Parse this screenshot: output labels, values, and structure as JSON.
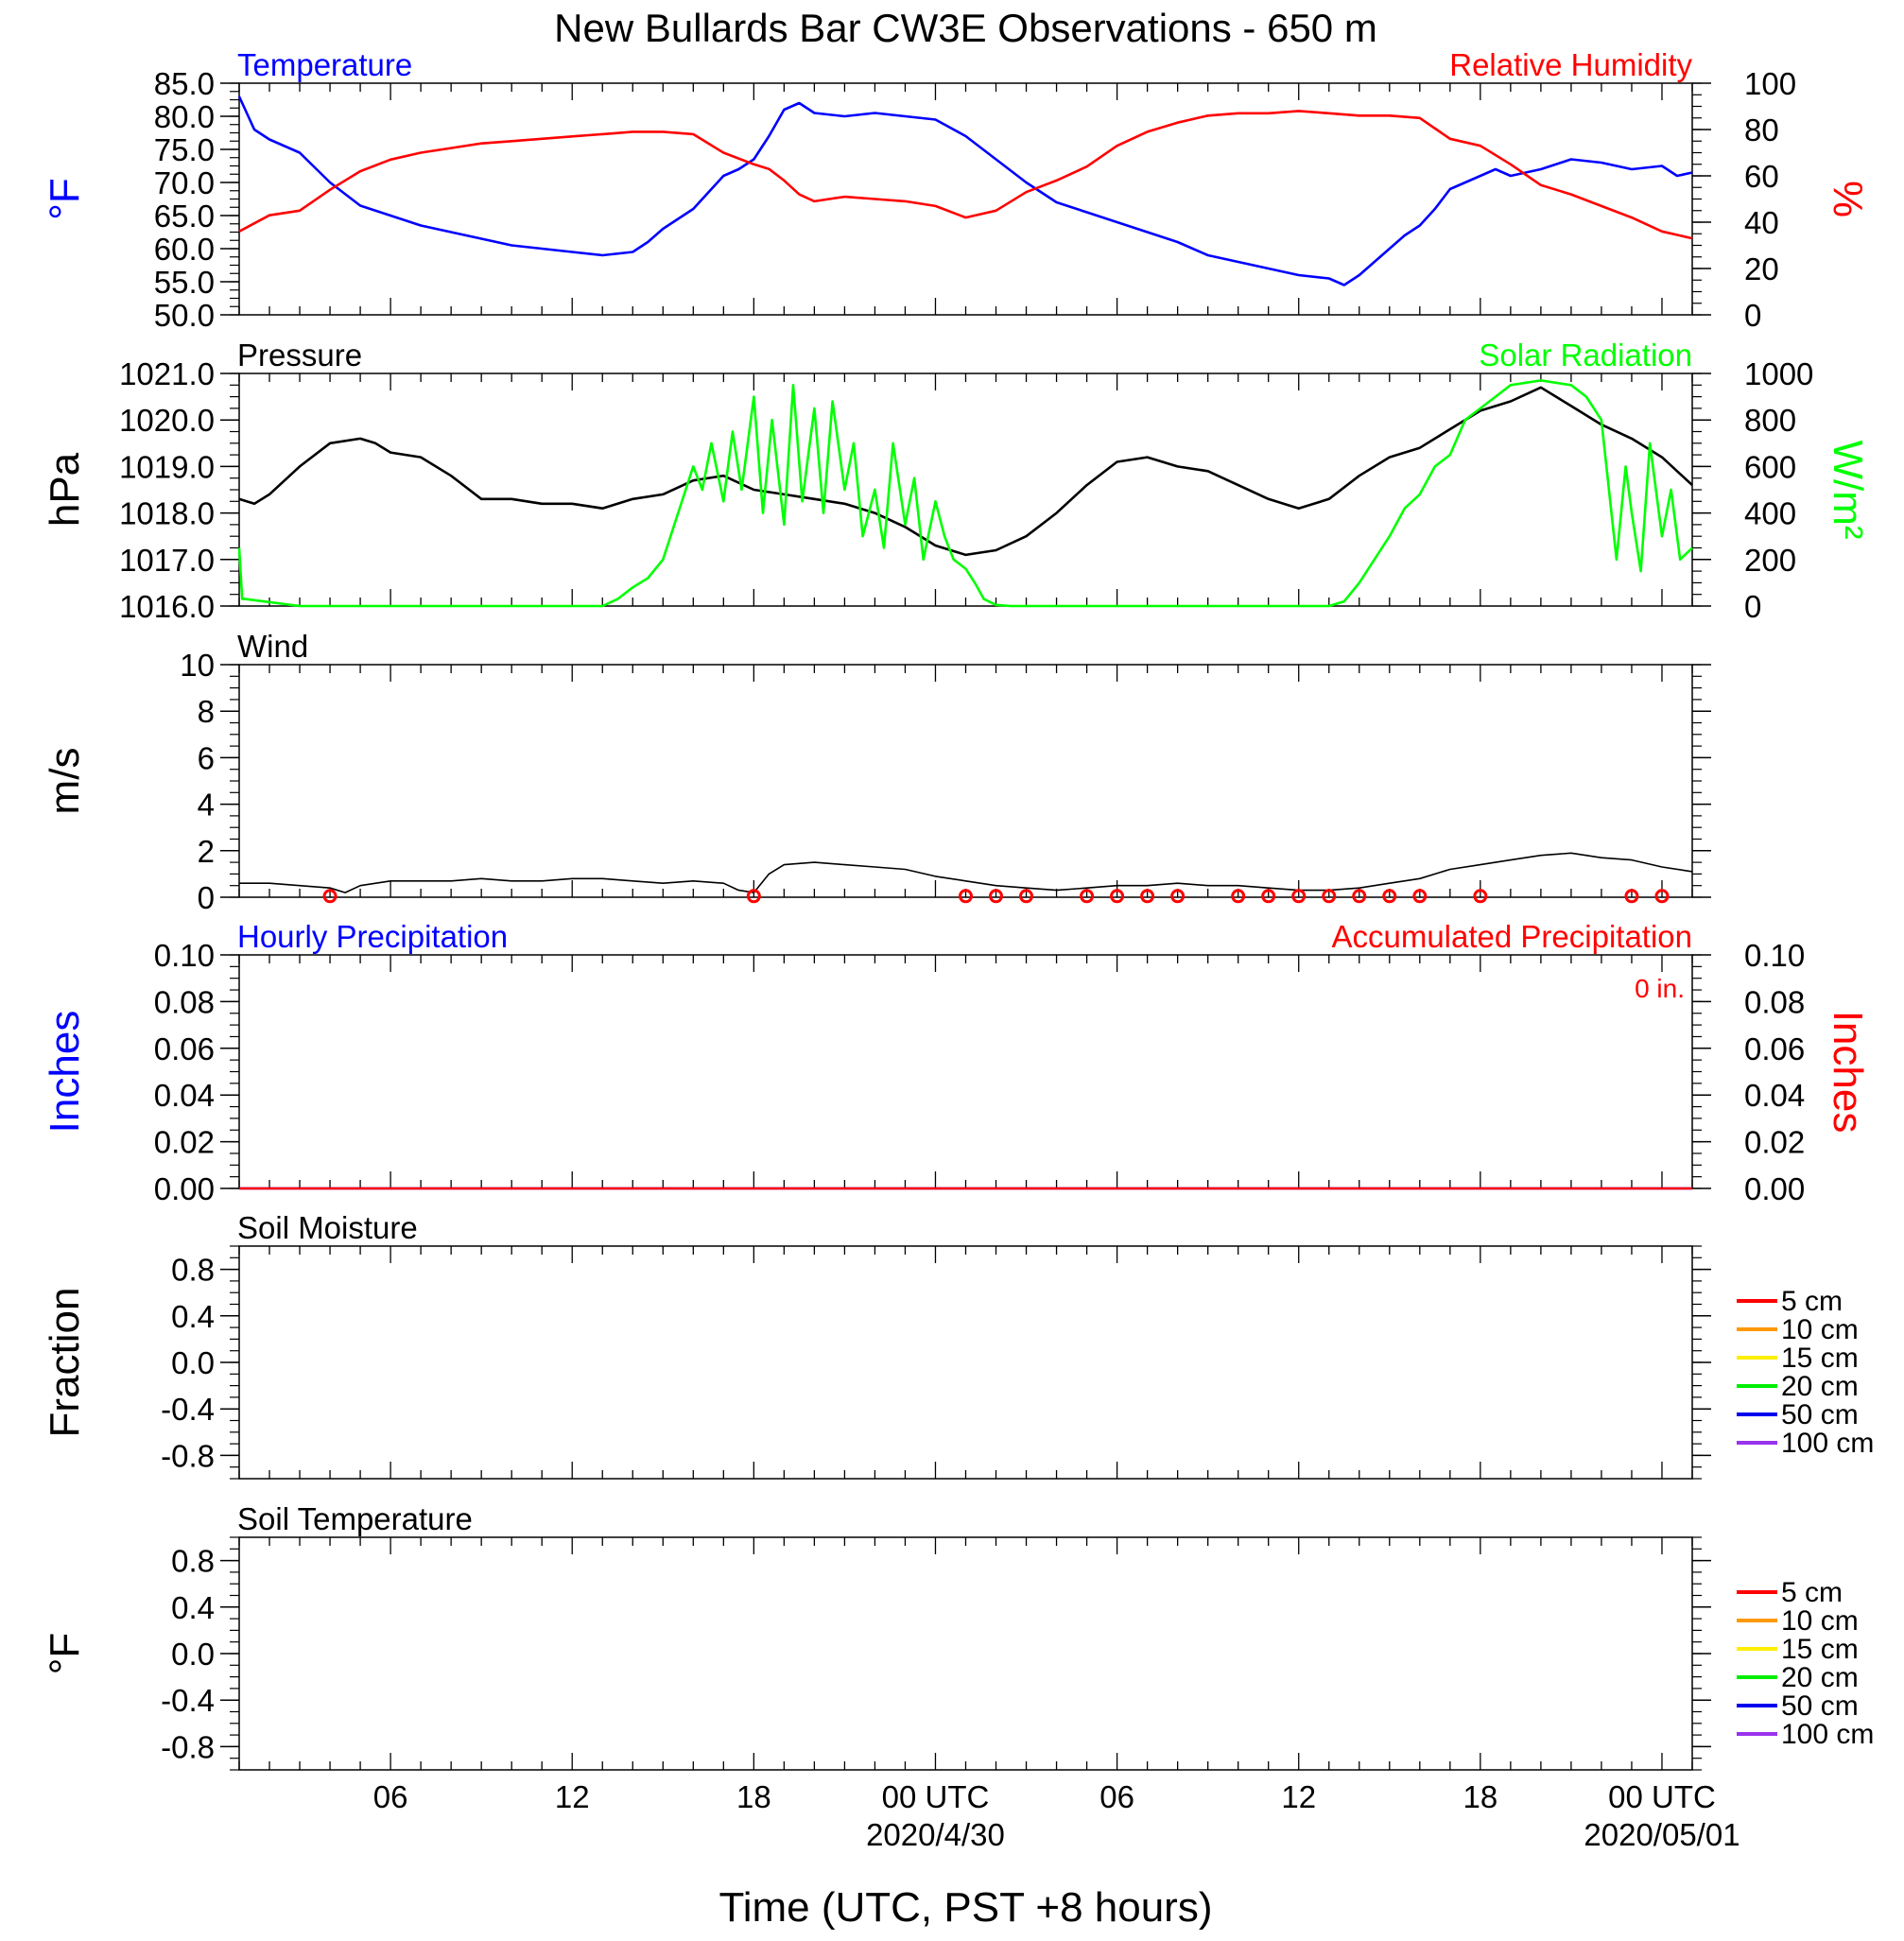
{
  "chart_data": [
    {
      "id": "temp_rh",
      "type": "line",
      "title": "New Bullards Bar CW3E Observations - 650 m",
      "panel_label_left": "Temperature",
      "panel_label_right": "Relative Humidity",
      "ylabel_left": "°F",
      "ylabel_right": "%",
      "xlim": [
        0,
        48
      ],
      "ylim_left": [
        50,
        85
      ],
      "ylim_right": [
        0,
        100
      ],
      "yticks_left": [
        "50.0",
        "55.0",
        "60.0",
        "65.0",
        "70.0",
        "75.0",
        "80.0",
        "85.0"
      ],
      "yticks_right": [
        "0",
        "20",
        "40",
        "60",
        "80",
        "100"
      ],
      "series": [
        {
          "name": "Temperature",
          "axis": "left",
          "color": "#0000ff",
          "x": [
            0,
            0.2,
            0.5,
            1,
            2,
            3,
            4,
            5,
            6,
            7,
            8,
            9,
            10,
            11,
            12,
            13,
            13.5,
            14,
            15,
            15.5,
            16,
            16.5,
            17,
            17.5,
            18,
            18.5,
            19,
            20,
            21,
            22,
            23,
            24,
            25,
            26,
            27,
            28,
            29,
            30,
            31,
            32,
            33,
            34,
            35,
            36,
            36.5,
            37,
            37.5,
            38,
            38.5,
            39,
            39.5,
            40,
            41,
            41.5,
            42,
            43,
            44,
            45,
            46,
            47,
            47.5,
            48
          ],
          "y": [
            83,
            81,
            78,
            76.5,
            74.5,
            70,
            66.5,
            65,
            63.5,
            62.5,
            61.5,
            60.5,
            60,
            59.5,
            59,
            59.5,
            61,
            63,
            66,
            68.5,
            71,
            72,
            73.5,
            77,
            81,
            82,
            80.5,
            80,
            80.5,
            80,
            79.5,
            77,
            73.5,
            70,
            67,
            65.5,
            64,
            62.5,
            61,
            59,
            58,
            57,
            56,
            55.5,
            54.5,
            56,
            58,
            60,
            62,
            63.5,
            66,
            69,
            71,
            72,
            71,
            72,
            73.5,
            73,
            72,
            72.5,
            71,
            71.5
          ]
        },
        {
          "name": "Relative Humidity",
          "axis": "right",
          "color": "#ff0000",
          "x": [
            0,
            1,
            2,
            3,
            4,
            5,
            6,
            7,
            8,
            9,
            10,
            11,
            12,
            13,
            14,
            15,
            16,
            17,
            17.5,
            18,
            18.5,
            19,
            20,
            21,
            22,
            23,
            24,
            25,
            26,
            27,
            28,
            29,
            30,
            31,
            32,
            33,
            34,
            35,
            36,
            37,
            38,
            39,
            40,
            41,
            42,
            43,
            44,
            45,
            46,
            47,
            48
          ],
          "y": [
            36,
            43,
            45,
            54,
            62,
            67,
            70,
            72,
            74,
            75,
            76,
            77,
            78,
            79,
            79,
            78,
            70,
            65,
            63,
            58,
            52,
            49,
            51,
            50,
            49,
            47,
            42,
            45,
            53,
            58,
            64,
            73,
            79,
            83,
            86,
            87,
            87,
            88,
            87,
            86,
            86,
            85,
            76,
            73,
            65,
            56,
            52,
            47,
            42,
            36,
            33
          ]
        }
      ]
    },
    {
      "id": "pressure_solar",
      "type": "line",
      "panel_label_left": "Pressure",
      "panel_label_right": "Solar Radiation",
      "ylabel_left": "hPa",
      "ylabel_right": "W/m²",
      "xlim": [
        0,
        48
      ],
      "ylim_left": [
        1016,
        1021
      ],
      "ylim_right": [
        0,
        1000
      ],
      "yticks_left": [
        "1016.0",
        "1017.0",
        "1018.0",
        "1019.0",
        "1020.0",
        "1021.0"
      ],
      "yticks_right": [
        "0",
        "200",
        "400",
        "600",
        "800",
        "1000"
      ],
      "series": [
        {
          "name": "Pressure",
          "axis": "left",
          "color": "#000000",
          "x": [
            0,
            0.5,
            1,
            2,
            3,
            4,
            4.5,
            5,
            6,
            7,
            8,
            9,
            10,
            11,
            12,
            13,
            14,
            15,
            16,
            17,
            18,
            19,
            20,
            21,
            22,
            23,
            24,
            25,
            26,
            27,
            28,
            29,
            30,
            31,
            32,
            33,
            34,
            35,
            36,
            37,
            38,
            39,
            40,
            41,
            42,
            43,
            44,
            45,
            46,
            47,
            48
          ],
          "y": [
            1018.3,
            1018.2,
            1018.4,
            1019.0,
            1019.5,
            1019.6,
            1019.5,
            1019.3,
            1019.2,
            1018.8,
            1018.3,
            1018.3,
            1018.2,
            1018.2,
            1018.1,
            1018.3,
            1018.4,
            1018.7,
            1018.8,
            1018.5,
            1018.4,
            1018.3,
            1018.2,
            1018.0,
            1017.7,
            1017.3,
            1017.1,
            1017.2,
            1017.5,
            1018.0,
            1018.6,
            1019.1,
            1019.2,
            1019.0,
            1018.9,
            1018.6,
            1018.3,
            1018.1,
            1018.3,
            1018.8,
            1019.2,
            1019.4,
            1019.8,
            1020.2,
            1020.4,
            1020.7,
            1020.3,
            1019.9,
            1019.6,
            1019.2,
            1018.6
          ]
        },
        {
          "name": "Solar Radiation",
          "axis": "right",
          "color": "#00ff00",
          "x": [
            0,
            0.1,
            0.2,
            2,
            4,
            6,
            8,
            10,
            12,
            12.5,
            13,
            13.5,
            14,
            14.5,
            15,
            15.3,
            15.6,
            16,
            16.3,
            16.6,
            17,
            17.3,
            17.6,
            18,
            18.3,
            18.6,
            19,
            19.3,
            19.6,
            20,
            20.3,
            20.6,
            21,
            21.3,
            21.6,
            22,
            22.3,
            22.6,
            23,
            23.3,
            23.6,
            24,
            24.3,
            24.6,
            25,
            25.5,
            26,
            27,
            28,
            30,
            32,
            34,
            36,
            36.5,
            37,
            37.5,
            38,
            38.5,
            39,
            39.5,
            40,
            40.5,
            41,
            41.5,
            42,
            43,
            44,
            44.5,
            45,
            45.5,
            45.8,
            46,
            46.3,
            46.6,
            47,
            47.3,
            47.6,
            48
          ],
          "y": [
            250,
            30,
            30,
            0,
            0,
            0,
            0,
            0,
            0,
            30,
            80,
            120,
            200,
            400,
            600,
            500,
            700,
            450,
            750,
            500,
            900,
            400,
            800,
            350,
            950,
            450,
            850,
            400,
            880,
            500,
            700,
            300,
            500,
            250,
            700,
            350,
            550,
            200,
            450,
            300,
            200,
            160,
            100,
            30,
            5,
            0,
            0,
            0,
            0,
            0,
            0,
            0,
            0,
            20,
            100,
            200,
            300,
            420,
            480,
            600,
            650,
            800,
            850,
            900,
            950,
            970,
            950,
            900,
            800,
            200,
            600,
            400,
            150,
            700,
            300,
            500,
            200,
            250
          ]
        }
      ]
    },
    {
      "id": "wind",
      "type": "line",
      "panel_label_left": "Wind",
      "ylabel_left": "m/s",
      "xlim": [
        0,
        48
      ],
      "ylim_left": [
        0,
        10
      ],
      "yticks_left": [
        "0",
        "2",
        "4",
        "6",
        "8",
        "10"
      ],
      "series": [
        {
          "name": "Wind Speed",
          "color": "#000000",
          "x": [
            0,
            1,
            2,
            3,
            3.5,
            4,
            5,
            6,
            7,
            8,
            9,
            10,
            11,
            12,
            13,
            14,
            15,
            16,
            16.5,
            17,
            17.5,
            18,
            19,
            20,
            21,
            22,
            23,
            24,
            25,
            26,
            27,
            28,
            29,
            30,
            31,
            32,
            33,
            34,
            35,
            36,
            37,
            38,
            39,
            40,
            41,
            42,
            43,
            44,
            45,
            46,
            47,
            48
          ],
          "y": [
            0.6,
            0.6,
            0.5,
            0.4,
            0.2,
            0.5,
            0.7,
            0.7,
            0.7,
            0.8,
            0.7,
            0.7,
            0.8,
            0.8,
            0.7,
            0.6,
            0.7,
            0.6,
            0.3,
            0.2,
            1.0,
            1.4,
            1.5,
            1.4,
            1.3,
            1.2,
            0.9,
            0.7,
            0.5,
            0.4,
            0.3,
            0.4,
            0.5,
            0.5,
            0.6,
            0.5,
            0.5,
            0.4,
            0.3,
            0.3,
            0.4,
            0.6,
            0.8,
            1.2,
            1.4,
            1.6,
            1.8,
            1.9,
            1.7,
            1.6,
            1.3,
            1.1
          ]
        },
        {
          "name": "Calm",
          "color": "#ff0000",
          "x": [
            3,
            17,
            24,
            25,
            26,
            28,
            29,
            30,
            31,
            33,
            34,
            35,
            36,
            37,
            38,
            39,
            41,
            46,
            47
          ]
        }
      ]
    },
    {
      "id": "precip",
      "type": "line",
      "panel_label_left": "Hourly Precipitation",
      "panel_label_right": "Accumulated Precipitation",
      "total_label": "0 in.",
      "ylabel_left": "Inches",
      "ylabel_right": "Inches",
      "xlim": [
        0,
        48
      ],
      "ylim_left": [
        0,
        0.1
      ],
      "ylim_right": [
        0,
        0.1
      ],
      "yticks_left": [
        "0.00",
        "0.02",
        "0.04",
        "0.06",
        "0.08",
        "0.10"
      ],
      "yticks_right": [
        "0.00",
        "0.02",
        "0.04",
        "0.06",
        "0.08",
        "0.10"
      ],
      "series": [
        {
          "name": "Hourly Precipitation",
          "color": "#0000ff",
          "x": [
            0,
            48
          ],
          "y": [
            0,
            0
          ]
        },
        {
          "name": "Accumulated Precipitation",
          "color": "#ff0000",
          "x": [
            0,
            48
          ],
          "y": [
            0,
            0
          ]
        }
      ]
    },
    {
      "id": "soil_moisture",
      "type": "line",
      "panel_label_left": "Soil Moisture",
      "ylabel_left": "Fraction",
      "xlim": [
        0,
        48
      ],
      "ylim_left": [
        -1,
        1
      ],
      "yticks_left": [
        "-0.8",
        "-0.4",
        "0.0",
        "0.4",
        "0.8"
      ],
      "legend": [
        {
          "label": "5 cm",
          "color": "#ff0000"
        },
        {
          "label": "10 cm",
          "color": "#ff9900"
        },
        {
          "label": "15 cm",
          "color": "#ffee00"
        },
        {
          "label": "20 cm",
          "color": "#00ee00"
        },
        {
          "label": "50 cm",
          "color": "#0000ee"
        },
        {
          "label": "100 cm",
          "color": "#9933ee"
        }
      ],
      "series": []
    },
    {
      "id": "soil_temp",
      "type": "line",
      "panel_label_left": "Soil Temperature",
      "ylabel_left": "°F",
      "xlim": [
        0,
        48
      ],
      "ylim_left": [
        -1,
        1
      ],
      "yticks_left": [
        "-0.8",
        "-0.4",
        "0.0",
        "0.4",
        "0.8"
      ],
      "legend": [
        {
          "label": "5 cm",
          "color": "#ff0000"
        },
        {
          "label": "10 cm",
          "color": "#ff9900"
        },
        {
          "label": "15 cm",
          "color": "#ffee00"
        },
        {
          "label": "20 cm",
          "color": "#00ee00"
        },
        {
          "label": "50 cm",
          "color": "#0000ee"
        },
        {
          "label": "100 cm",
          "color": "#9933ee"
        }
      ],
      "series": []
    }
  ],
  "x_axis": {
    "ticks": [
      {
        "x": 5,
        "label": "06"
      },
      {
        "x": 11,
        "label": "12"
      },
      {
        "x": 17,
        "label": "18"
      },
      {
        "x": 23,
        "label": "00 UTC",
        "sub": "2020/4/30"
      },
      {
        "x": 29,
        "label": "06"
      },
      {
        "x": 35,
        "label": "12"
      },
      {
        "x": 41,
        "label": "18"
      },
      {
        "x": 47,
        "label": "00 UTC",
        "sub": "2020/05/01"
      }
    ],
    "label": "Time (UTC, PST +8 hours)"
  }
}
